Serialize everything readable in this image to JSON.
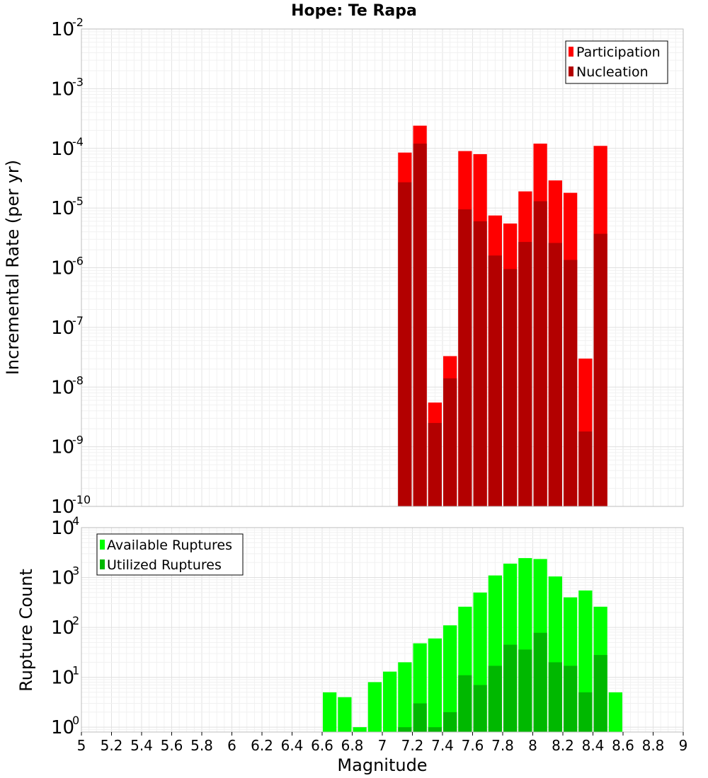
{
  "chart_data": [
    {
      "type": "bar",
      "title": "Hope: Te Rapa",
      "xlabel": "",
      "ylabel": "Incremental Rate (per yr)",
      "y_scale": "log",
      "ylim": [
        1e-10,
        0.01
      ],
      "xlim": [
        5,
        9
      ],
      "bar_width": 0.1,
      "legend_position": "top-right",
      "grid": true,
      "colors": {
        "Participation": "#ff0000",
        "Nucleation": "#b30000"
      },
      "y_ticks": [
        {
          "base": "10",
          "exp": "-10"
        },
        {
          "base": "10",
          "exp": "-9"
        },
        {
          "base": "10",
          "exp": "-8"
        },
        {
          "base": "10",
          "exp": "-7"
        },
        {
          "base": "10",
          "exp": "-6"
        },
        {
          "base": "10",
          "exp": "-5"
        },
        {
          "base": "10",
          "exp": "-4"
        },
        {
          "base": "10",
          "exp": "-3"
        },
        {
          "base": "10",
          "exp": "-2"
        }
      ],
      "series": [
        {
          "name": "Participation",
          "x": [
            7.15,
            7.25,
            7.35,
            7.45,
            7.55,
            7.65,
            7.75,
            7.85,
            7.95,
            8.05,
            8.15,
            8.25,
            8.35,
            8.45
          ],
          "values": [
            8.5e-05,
            0.00024,
            5.5e-09,
            3.3e-08,
            9e-05,
            8e-05,
            7.5e-06,
            5.5e-06,
            1.9e-05,
            0.00012,
            2.9e-05,
            1.8e-05,
            3e-08,
            0.00011
          ]
        },
        {
          "name": "Nucleation",
          "x": [
            7.15,
            7.25,
            7.35,
            7.45,
            7.55,
            7.65,
            7.75,
            7.85,
            7.95,
            8.05,
            8.15,
            8.25,
            8.35,
            8.45
          ],
          "values": [
            2.7e-05,
            0.00012,
            2.5e-09,
            1.4e-08,
            9.5e-06,
            6e-06,
            1.6e-06,
            9.5e-07,
            2.7e-06,
            1.3e-05,
            2.6e-06,
            1.35e-06,
            1.8e-09,
            3.7e-06
          ]
        }
      ]
    },
    {
      "type": "bar",
      "title": "",
      "xlabel": "Magnitude",
      "ylabel": "Rupture Count",
      "y_scale": "log",
      "ylim": [
        0.8,
        10000
      ],
      "xlim": [
        5,
        9
      ],
      "bar_width": 0.1,
      "legend_position": "top-left",
      "grid": true,
      "colors": {
        "Available Ruptures": "#00ff00",
        "Utilized Ruptures": "#00b800"
      },
      "x_ticks": [
        "5",
        "5.2",
        "5.4",
        "5.6",
        "5.8",
        "6",
        "6.2",
        "6.4",
        "6.6",
        "6.8",
        "7",
        "7.2",
        "7.4",
        "7.6",
        "7.8",
        "8",
        "8.2",
        "8.4",
        "8.6",
        "8.8",
        "9"
      ],
      "y_ticks": [
        {
          "base": "10",
          "exp": "0"
        },
        {
          "base": "10",
          "exp": "1"
        },
        {
          "base": "10",
          "exp": "2"
        },
        {
          "base": "10",
          "exp": "3"
        },
        {
          "base": "10",
          "exp": "4"
        }
      ],
      "series": [
        {
          "name": "Available Ruptures",
          "x": [
            6.65,
            6.75,
            6.85,
            6.95,
            7.05,
            7.15,
            7.25,
            7.35,
            7.45,
            7.55,
            7.65,
            7.75,
            7.85,
            7.95,
            8.05,
            8.15,
            8.25,
            8.35,
            8.45,
            8.55
          ],
          "values": [
            5,
            4,
            1,
            8,
            13,
            20,
            48,
            60,
            110,
            260,
            500,
            1100,
            1900,
            2450,
            2350,
            1050,
            400,
            550,
            260,
            5
          ]
        },
        {
          "name": "Utilized Ruptures",
          "x": [
            7.15,
            7.25,
            7.35,
            7.45,
            7.55,
            7.65,
            7.75,
            7.85,
            7.95,
            8.05,
            8.15,
            8.25,
            8.35,
            8.45
          ],
          "values": [
            1,
            3,
            1,
            2,
            11,
            7,
            17,
            45,
            36,
            78,
            20,
            17,
            5,
            28
          ]
        }
      ]
    }
  ]
}
